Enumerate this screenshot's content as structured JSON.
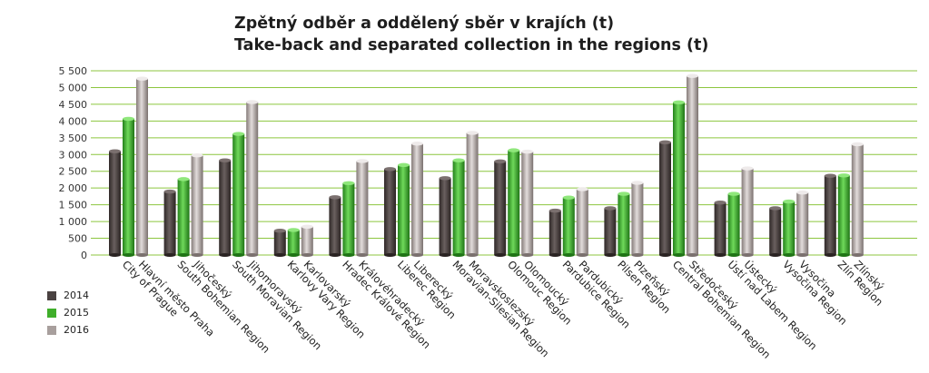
{
  "chart_data": {
    "type": "bar",
    "title": "Zpětný odběr a oddělený sběr v krajích (t)",
    "subtitle": "Take-back and separated collection in the regions (t)",
    "categories": [
      [
        "Hlavní město Praha",
        "City of Prague"
      ],
      [
        "Jihočeský",
        "South Bohemian Region"
      ],
      [
        "Jihomoravský",
        "South Moravian Region"
      ],
      [
        "Karlovarský",
        "Karlovy Vary Region"
      ],
      [
        "Královéhradecký",
        "Hradec Králové Region"
      ],
      [
        "Liberecký",
        "Liberec Region"
      ],
      [
        "Moravskoslezský",
        "Moravian-Silesian Region"
      ],
      [
        "Olomoucký",
        "Olomouc Region"
      ],
      [
        "Pardubický",
        "Pardubice Region"
      ],
      [
        "Plzeňský",
        "Pilsen Region"
      ],
      [
        "Středočeský",
        "Central Bohemian Region"
      ],
      [
        "Ústecký",
        "Ústí nad Labem Region"
      ],
      [
        "Vysočina",
        "Vysočina Region"
      ],
      [
        "Zlínský",
        "Zlín Region"
      ]
    ],
    "series": [
      {
        "name": "2014",
        "color": "#4a4241",
        "values": [
          3150,
          1950,
          2880,
          780,
          1780,
          2620,
          2350,
          2850,
          1380,
          1450,
          3420,
          1620,
          1450,
          2420
        ]
      },
      {
        "name": "2015",
        "color": "#3fae2a",
        "values": [
          4120,
          2320,
          3670,
          800,
          2200,
          2740,
          2880,
          3180,
          1770,
          1880,
          4610,
          1880,
          1650,
          2430
        ]
      },
      {
        "name": "2016",
        "color": "#a89f9d",
        "values": [
          5320,
          3030,
          4620,
          900,
          2860,
          3380,
          3700,
          3140,
          2020,
          2210,
          5400,
          2640,
          1920,
          3360
        ]
      }
    ],
    "yticks": [
      "0",
      "500",
      "1 000",
      "1 500",
      "2 000",
      "2 500",
      "3 000",
      "3 500",
      "4 000",
      "4 500",
      "5 000",
      "5 500"
    ],
    "ylim": [
      0,
      5500
    ],
    "grid": true,
    "legend_position": "bottom-left"
  }
}
